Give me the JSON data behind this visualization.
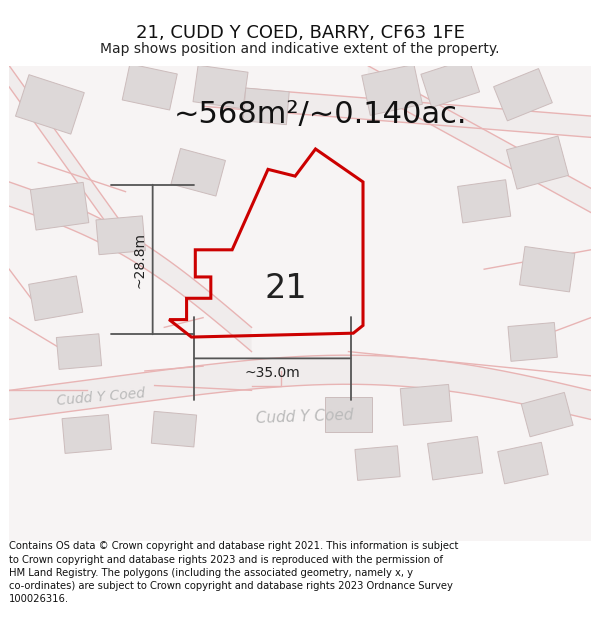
{
  "title": "21, CUDD Y COED, BARRY, CF63 1FE",
  "subtitle": "Map shows position and indicative extent of the property.",
  "area_text": "~568m²/~0.140ac.",
  "label_number": "21",
  "dim_height": "~28.8m",
  "dim_width": "~35.0m",
  "footer_text": "Contains OS data © Crown copyright and database right 2021. This information is subject to Crown copyright and database rights 2023 and is reproduced with the permission of HM Land Registry. The polygons (including the associated geometry, namely x, y co-ordinates) are subject to Crown copyright and database rights 2023 Ordnance Survey 100026316.",
  "bg_color": "#f7f4f4",
  "road_line_color": "#e8b4b4",
  "building_fill": "#ddd8d8",
  "building_edge": "#ccbcbc",
  "plot_fill": "#ffffff",
  "plot_edge": "#cc0000",
  "dim_line_color": "#555555",
  "street_label_color": "#bbbbbb",
  "title_fontsize": 13,
  "subtitle_fontsize": 10,
  "area_fontsize": 22,
  "label_fontsize": 24,
  "footer_fontsize": 7.2,
  "dim_fontsize": 10
}
